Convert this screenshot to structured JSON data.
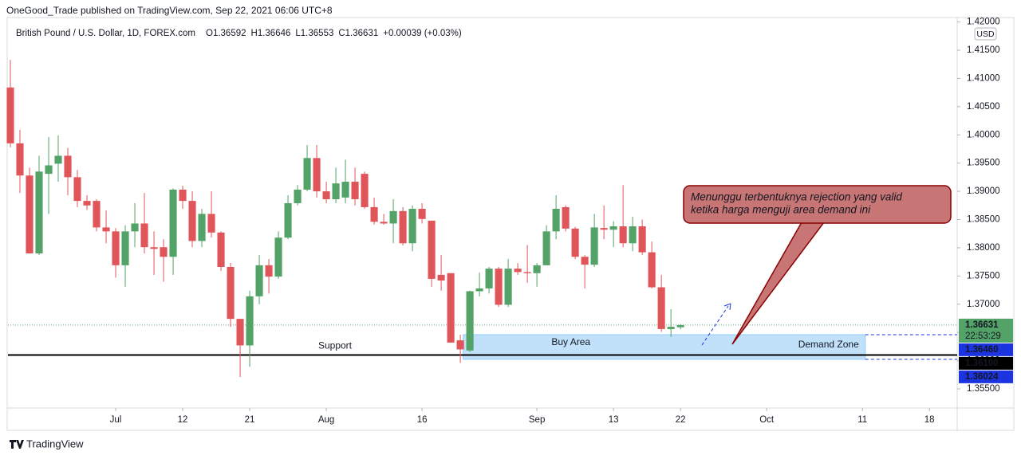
{
  "header": {
    "publisher": "OneGood_Trade published on TradingView.com, Sep 22, 2021 06:06 UTC+8",
    "symbol": "British Pound / U.S. Dollar, 1D, FOREX.com",
    "ohlc": [
      "O1.36592",
      "H1.36646",
      "L1.36553",
      "C1.36631"
    ],
    "change": "+0.00039 (+0.03%)"
  },
  "chart_data": {
    "type": "candlestick",
    "up_color": "#53a267",
    "down_color": "#e0555a",
    "open": [
      1.4084,
      1.3985,
      1.3928,
      1.379,
      1.3931,
      1.3949,
      1.3963,
      1.3925,
      1.3883,
      1.3883,
      1.3836,
      1.3829,
      1.3769,
      1.3829,
      1.3843,
      1.3801,
      1.3801,
      1.3784,
      1.3903,
      1.3883,
      1.3812,
      1.386,
      1.3827,
      1.3766,
      1.3674,
      1.3627,
      1.3714,
      1.3769,
      1.3749,
      1.3818,
      1.3879,
      1.3903,
      1.3959,
      1.39,
      1.3886,
      1.3889,
      1.3917,
      1.3931,
      1.3872,
      1.3846,
      1.3843,
      1.3865,
      1.3808,
      1.3869,
      1.3848,
      1.3752,
      1.3755,
      1.3636,
      1.3618,
      1.3723,
      1.3728,
      1.3763,
      1.3699,
      1.3763,
      1.3757,
      1.3755,
      1.3769,
      1.3829,
      1.3872,
      1.3834,
      1.3784,
      1.377,
      1.3835,
      1.3832,
      1.3838,
      1.3808,
      1.3838,
      1.3792,
      1.373,
      1.3656,
      1.36592
    ],
    "high": [
      1.4133,
      1.4009,
      1.3942,
      1.3963,
      1.3996,
      1.3999,
      1.3977,
      1.3938,
      1.3893,
      1.3886,
      1.3866,
      1.3835,
      1.384,
      1.3879,
      1.3897,
      1.3829,
      1.3815,
      1.3905,
      1.391,
      1.39,
      1.3869,
      1.39,
      1.3829,
      1.3773,
      1.3674,
      1.3724,
      1.3787,
      1.378,
      1.3829,
      1.3893,
      1.3911,
      1.3982,
      1.3982,
      1.3917,
      1.3942,
      1.3956,
      1.3942,
      1.3935,
      1.3889,
      1.386,
      1.3886,
      1.3872,
      1.3875,
      1.3879,
      1.3848,
      1.3787,
      1.3755,
      1.3646,
      1.3724,
      1.3756,
      1.3766,
      1.3766,
      1.378,
      1.3773,
      1.3805,
      1.3773,
      1.384,
      1.3893,
      1.3875,
      1.3837,
      1.3787,
      1.386,
      1.3875,
      1.3847,
      1.3911,
      1.3855,
      1.385,
      1.3811,
      1.3752,
      1.3691,
      1.36646
    ],
    "low": [
      1.3978,
      1.3897,
      1.379,
      1.3787,
      1.386,
      1.3917,
      1.3893,
      1.3872,
      1.3867,
      1.3829,
      1.3808,
      1.3747,
      1.3731,
      1.3801,
      1.379,
      1.3752,
      1.374,
      1.3752,
      1.3869,
      1.3801,
      1.3801,
      1.3818,
      1.3759,
      1.366,
      1.3571,
      1.3589,
      1.37,
      1.3719,
      1.3745,
      1.3815,
      1.3875,
      1.39,
      1.3889,
      1.3879,
      1.3879,
      1.3879,
      1.3875,
      1.3869,
      1.3841,
      1.3841,
      1.3808,
      1.3804,
      1.3794,
      1.3843,
      1.3731,
      1.3724,
      1.3632,
      1.3596,
      1.3615,
      1.3714,
      1.3719,
      1.3695,
      1.3695,
      1.3752,
      1.3738,
      1.3731,
      1.3769,
      1.3815,
      1.3829,
      1.378,
      1.3728,
      1.3766,
      1.3815,
      1.3801,
      1.3801,
      1.3794,
      1.3787,
      1.3728,
      1.3651,
      1.3642,
      1.36553
    ],
    "close": [
      1.3985,
      1.3928,
      1.379,
      1.3935,
      1.3946,
      1.3963,
      1.3925,
      1.3883,
      1.3875,
      1.3836,
      1.3829,
      1.3769,
      1.3829,
      1.3843,
      1.3801,
      1.3798,
      1.3784,
      1.3903,
      1.3883,
      1.3812,
      1.386,
      1.3827,
      1.3766,
      1.3674,
      1.3627,
      1.3714,
      1.3769,
      1.3749,
      1.3818,
      1.3879,
      1.3903,
      1.3959,
      1.39,
      1.3886,
      1.3914,
      1.3917,
      1.3886,
      1.3872,
      1.3846,
      1.3843,
      1.3865,
      1.3808,
      1.3869,
      1.3851,
      1.3745,
      1.3742,
      1.3632,
      1.362,
      1.3723,
      1.3728,
      1.3763,
      1.3699,
      1.3763,
      1.3757,
      1.3755,
      1.3769,
      1.3829,
      1.3869,
      1.3834,
      1.3784,
      1.377,
      1.3836,
      1.3832,
      1.3838,
      1.3808,
      1.3838,
      1.3792,
      1.373,
      1.3656,
      1.366,
      1.36631
    ],
    "xlim": [
      -0.25,
      98.9
    ],
    "xticks": [
      {
        "value": 11,
        "label": "Jul"
      },
      {
        "value": 18,
        "label": "12"
      },
      {
        "value": 25,
        "label": "21"
      },
      {
        "value": 33,
        "label": "Aug"
      },
      {
        "value": 43,
        "label": "16"
      },
      {
        "value": 55,
        "label": "Sep"
      },
      {
        "value": 63,
        "label": "13"
      },
      {
        "value": 70,
        "label": "22"
      },
      {
        "value": 79,
        "label": "Oct"
      },
      {
        "value": 89,
        "label": "11"
      },
      {
        "value": 96,
        "label": "18"
      }
    ],
    "ylim": [
      1.35161,
      1.42079
    ],
    "yticks": [
      {
        "value": 1.42,
        "label": "1.42000"
      },
      {
        "value": 1.415,
        "label": "1.41500"
      },
      {
        "value": 1.41,
        "label": "1.41000"
      },
      {
        "value": 1.405,
        "label": "1.40500"
      },
      {
        "value": 1.4,
        "label": "1.40000"
      },
      {
        "value": 1.395,
        "label": "1.39500"
      },
      {
        "value": 1.39,
        "label": "1.39000"
      },
      {
        "value": 1.385,
        "label": "1.38500"
      },
      {
        "value": 1.38,
        "label": "1.38000"
      },
      {
        "value": 1.375,
        "label": "1.37500"
      },
      {
        "value": 1.37,
        "label": "1.37000"
      },
      {
        "value": 1.365,
        "label": "1.36500"
      },
      {
        "value": 1.36,
        "label": "1.36000"
      },
      {
        "value": 1.355,
        "label": "1.35500"
      }
    ],
    "currency": "USD",
    "countdown": "22:53:29",
    "price_labels": [
      {
        "value": 1.36631,
        "label": "1.36631",
        "color": "#53a267"
      },
      {
        "value": 1.3646,
        "label": "1.36460",
        "color": "#1b34e0"
      },
      {
        "value": 1.361,
        "label": "1.36100",
        "color": "#000000"
      },
      {
        "value": 1.36024,
        "label": "1.36024",
        "color": "#1b34e0"
      }
    ],
    "support": {
      "value": 1.361,
      "label": "Support"
    },
    "zone": {
      "top": 1.3646,
      "bottom": 1.36024,
      "labels": [
        "Buy Area",
        "Demand Zone"
      ]
    },
    "callout": [
      "Menunggu terbentuknya rejection yang valid",
      "ketika harga menguji area demand ini"
    ]
  },
  "footer": "TradingView"
}
